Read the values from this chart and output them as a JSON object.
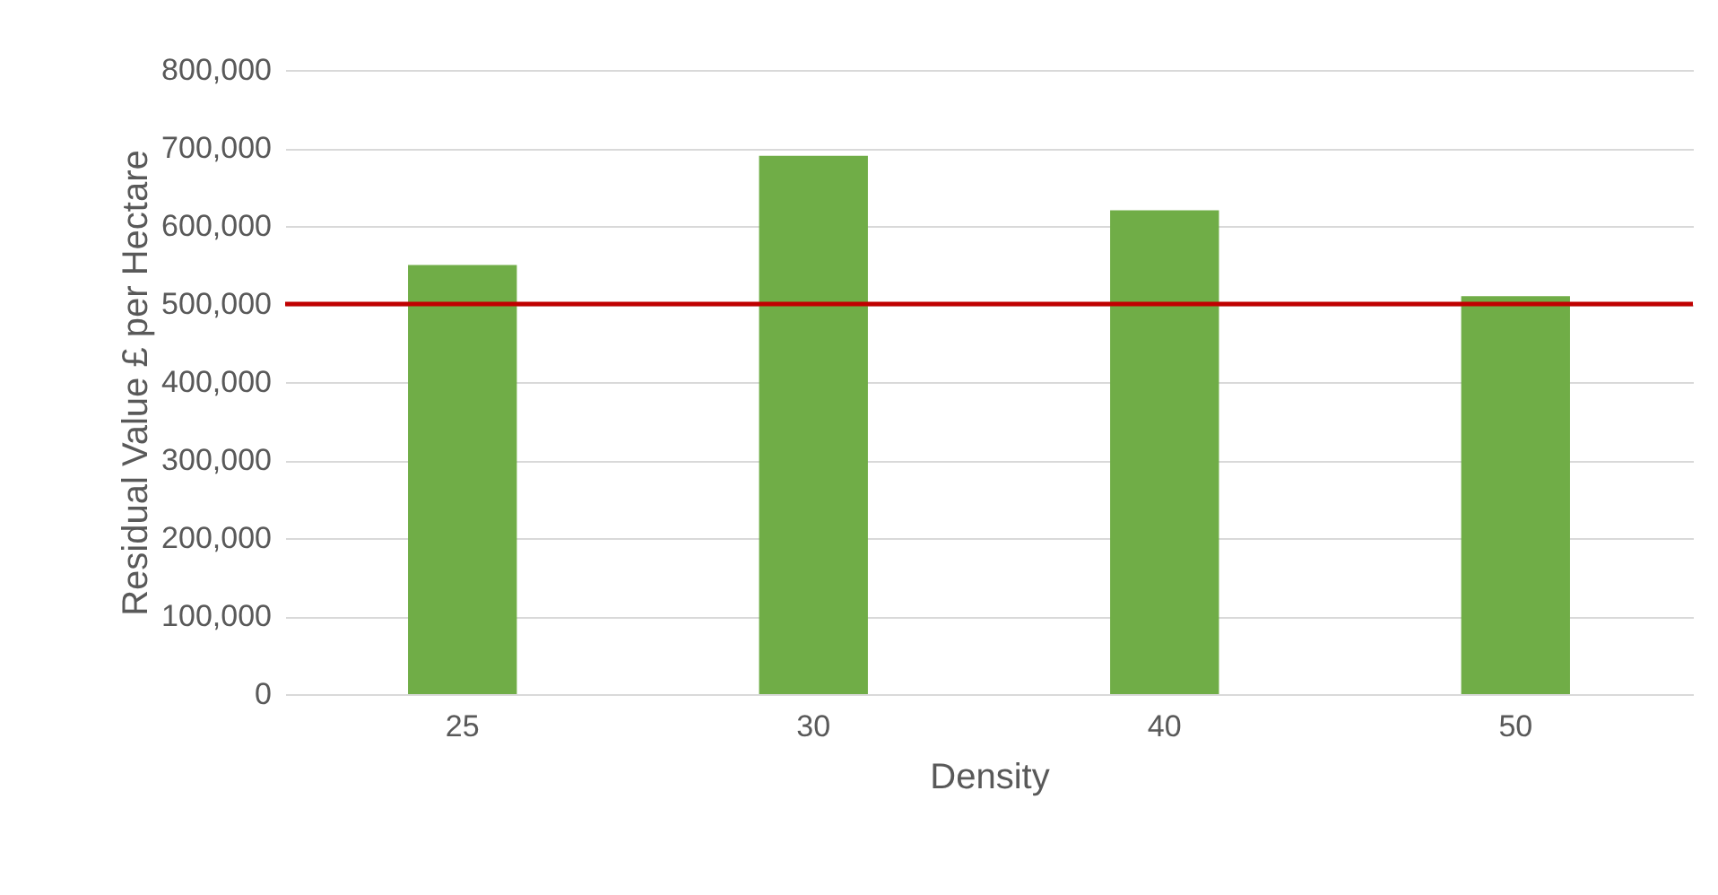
{
  "chart_data": {
    "type": "bar",
    "xlabel": "Density",
    "ylabel": "Residual Value £ per Hectare",
    "categories": [
      "25",
      "30",
      "40",
      "50"
    ],
    "values": [
      550000,
      690000,
      620000,
      510000
    ],
    "color": "#70ad47",
    "ylim": [
      0,
      800000
    ],
    "yticks": [
      0,
      {
        "value": 100000,
        "label": "100,000"
      },
      {
        "value": 200000,
        "label": "200,000"
      },
      {
        "value": 300000,
        "label": "300,000"
      },
      {
        "value": 400000,
        "label": "400,000"
      },
      {
        "value": 500000,
        "label": "500,000"
      },
      {
        "value": 600000,
        "label": "600,000"
      },
      {
        "value": 700000,
        "label": "700,000"
      },
      {
        "value": 800000,
        "label": "800,000"
      }
    ],
    "grid": "y",
    "ref_lines": [
      {
        "axis": "y",
        "value": 500000,
        "color": "#c00000"
      }
    ]
  }
}
